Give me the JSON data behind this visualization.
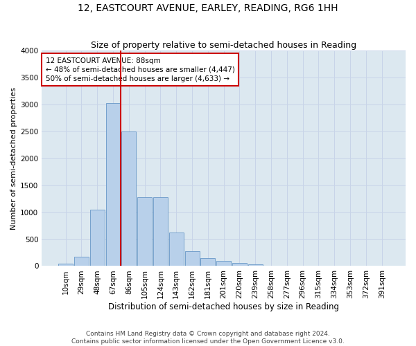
{
  "title1": "12, EASTCOURT AVENUE, EARLEY, READING, RG6 1HH",
  "title2": "Size of property relative to semi-detached houses in Reading",
  "xlabel": "Distribution of semi-detached houses by size in Reading",
  "ylabel": "Number of semi-detached properties",
  "footnote1": "Contains HM Land Registry data © Crown copyright and database right 2024.",
  "footnote2": "Contains public sector information licensed under the Open Government Licence v3.0.",
  "bar_labels": [
    "10sqm",
    "29sqm",
    "48sqm",
    "67sqm",
    "86sqm",
    "105sqm",
    "124sqm",
    "143sqm",
    "162sqm",
    "181sqm",
    "201sqm",
    "220sqm",
    "239sqm",
    "258sqm",
    "277sqm",
    "296sqm",
    "315sqm",
    "334sqm",
    "353sqm",
    "372sqm",
    "391sqm"
  ],
  "bar_values": [
    50,
    175,
    1050,
    3020,
    2500,
    1280,
    1280,
    620,
    280,
    150,
    90,
    55,
    30,
    10,
    5,
    5,
    3,
    3,
    3,
    3,
    3
  ],
  "bar_color": "#b8d0ea",
  "bar_edge_color": "#6898c8",
  "annotation_box_text": "12 EASTCOURT AVENUE: 88sqm\n← 48% of semi-detached houses are smaller (4,447)\n50% of semi-detached houses are larger (4,633) →",
  "annotation_box_color": "#ffffff",
  "annotation_box_edge_color": "#cc0000",
  "vline_x_index": 3.5,
  "vline_color": "#cc0000",
  "ylim": [
    0,
    4000
  ],
  "yticks": [
    0,
    500,
    1000,
    1500,
    2000,
    2500,
    3000,
    3500,
    4000
  ],
  "grid_color": "#c8d4e8",
  "bg_color": "#dce8f0",
  "title1_fontsize": 10,
  "title2_fontsize": 9,
  "xlabel_fontsize": 8.5,
  "ylabel_fontsize": 8,
  "tick_fontsize": 7.5,
  "annot_fontsize": 7.5,
  "footnote_fontsize": 6.5
}
